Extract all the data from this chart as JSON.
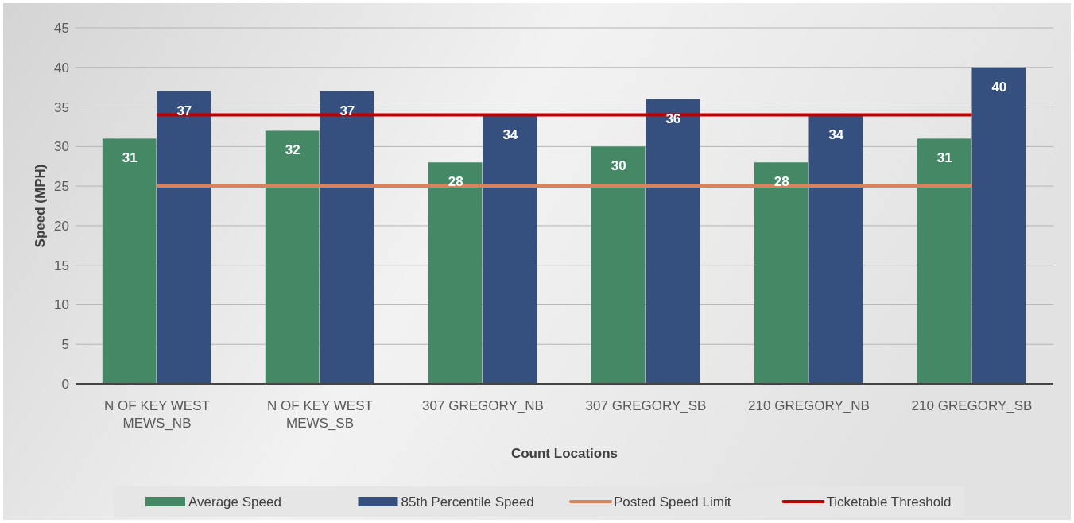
{
  "chart_data": {
    "type": "bar",
    "xlabel": "Count Locations",
    "ylabel": "Speed (MPH)",
    "categories": [
      "N OF KEY WEST MEWS_NB",
      "N OF KEY WEST MEWS_SB",
      "307 GREGORY_NB",
      "307 GREGORY_SB",
      "210 GREGORY_NB",
      "210 GREGORY_SB"
    ],
    "series": [
      {
        "name": "Average Speed",
        "color": "#448866",
        "values": [
          31,
          32,
          28,
          30,
          28,
          31
        ],
        "value_labels": [
          "31",
          "32",
          "28",
          "30",
          "28",
          "31"
        ]
      },
      {
        "name": "85th Percentile Speed",
        "color": "#35507f",
        "values": [
          37,
          37,
          34,
          36,
          34,
          40
        ],
        "value_labels": [
          "37",
          "37",
          "34",
          "36",
          "34",
          "40"
        ]
      },
      {
        "name": "Posted Speed Limit",
        "type": "line",
        "color": "#d9825b",
        "values": [
          25,
          25,
          25,
          25,
          25,
          25
        ]
      },
      {
        "name": "Ticketable Threshold",
        "type": "line",
        "color": "#c00000",
        "values": [
          34,
          34,
          34,
          34,
          34,
          34
        ]
      }
    ],
    "ylim": [
      0,
      45
    ],
    "yticks": [
      0,
      5,
      10,
      15,
      20,
      25,
      30,
      35,
      40,
      45
    ],
    "grid": "y",
    "legend": "bottom"
  }
}
